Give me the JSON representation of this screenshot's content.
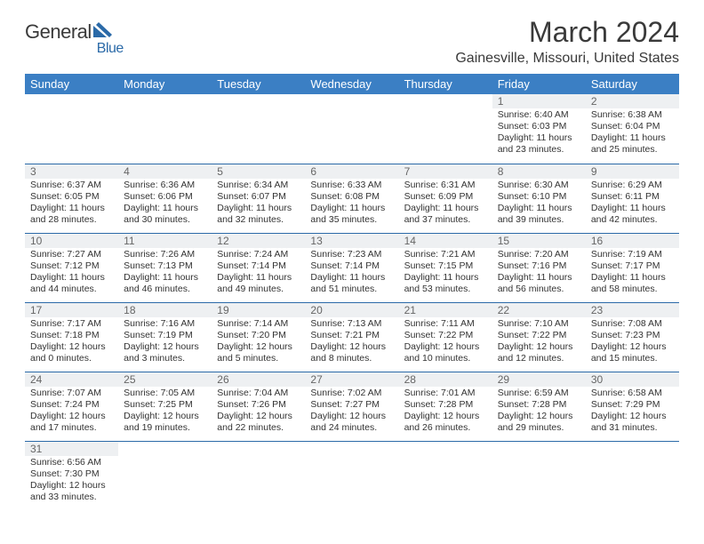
{
  "brand": {
    "word1": "General",
    "word2": "Blue"
  },
  "title": "March 2024",
  "location": "Gainesville, Missouri, United States",
  "colors": {
    "header_bg": "#3b7fc4",
    "header_text": "#ffffff",
    "row_border": "#2b6aa8",
    "daynum_bg": "#eef0f2",
    "text": "#333333",
    "brand_blue": "#2b6aa8"
  },
  "weekdays": [
    "Sunday",
    "Monday",
    "Tuesday",
    "Wednesday",
    "Thursday",
    "Friday",
    "Saturday"
  ],
  "first_weekday_index": 5,
  "days": [
    {
      "n": 1,
      "sunrise": "6:40 AM",
      "sunset": "6:03 PM",
      "dl_h": 11,
      "dl_m": 23
    },
    {
      "n": 2,
      "sunrise": "6:38 AM",
      "sunset": "6:04 PM",
      "dl_h": 11,
      "dl_m": 25
    },
    {
      "n": 3,
      "sunrise": "6:37 AM",
      "sunset": "6:05 PM",
      "dl_h": 11,
      "dl_m": 28
    },
    {
      "n": 4,
      "sunrise": "6:36 AM",
      "sunset": "6:06 PM",
      "dl_h": 11,
      "dl_m": 30
    },
    {
      "n": 5,
      "sunrise": "6:34 AM",
      "sunset": "6:07 PM",
      "dl_h": 11,
      "dl_m": 32
    },
    {
      "n": 6,
      "sunrise": "6:33 AM",
      "sunset": "6:08 PM",
      "dl_h": 11,
      "dl_m": 35
    },
    {
      "n": 7,
      "sunrise": "6:31 AM",
      "sunset": "6:09 PM",
      "dl_h": 11,
      "dl_m": 37
    },
    {
      "n": 8,
      "sunrise": "6:30 AM",
      "sunset": "6:10 PM",
      "dl_h": 11,
      "dl_m": 39
    },
    {
      "n": 9,
      "sunrise": "6:29 AM",
      "sunset": "6:11 PM",
      "dl_h": 11,
      "dl_m": 42
    },
    {
      "n": 10,
      "sunrise": "7:27 AM",
      "sunset": "7:12 PM",
      "dl_h": 11,
      "dl_m": 44
    },
    {
      "n": 11,
      "sunrise": "7:26 AM",
      "sunset": "7:13 PM",
      "dl_h": 11,
      "dl_m": 46
    },
    {
      "n": 12,
      "sunrise": "7:24 AM",
      "sunset": "7:14 PM",
      "dl_h": 11,
      "dl_m": 49
    },
    {
      "n": 13,
      "sunrise": "7:23 AM",
      "sunset": "7:14 PM",
      "dl_h": 11,
      "dl_m": 51
    },
    {
      "n": 14,
      "sunrise": "7:21 AM",
      "sunset": "7:15 PM",
      "dl_h": 11,
      "dl_m": 53
    },
    {
      "n": 15,
      "sunrise": "7:20 AM",
      "sunset": "7:16 PM",
      "dl_h": 11,
      "dl_m": 56
    },
    {
      "n": 16,
      "sunrise": "7:19 AM",
      "sunset": "7:17 PM",
      "dl_h": 11,
      "dl_m": 58
    },
    {
      "n": 17,
      "sunrise": "7:17 AM",
      "sunset": "7:18 PM",
      "dl_h": 12,
      "dl_m": 0
    },
    {
      "n": 18,
      "sunrise": "7:16 AM",
      "sunset": "7:19 PM",
      "dl_h": 12,
      "dl_m": 3
    },
    {
      "n": 19,
      "sunrise": "7:14 AM",
      "sunset": "7:20 PM",
      "dl_h": 12,
      "dl_m": 5
    },
    {
      "n": 20,
      "sunrise": "7:13 AM",
      "sunset": "7:21 PM",
      "dl_h": 12,
      "dl_m": 8
    },
    {
      "n": 21,
      "sunrise": "7:11 AM",
      "sunset": "7:22 PM",
      "dl_h": 12,
      "dl_m": 10
    },
    {
      "n": 22,
      "sunrise": "7:10 AM",
      "sunset": "7:22 PM",
      "dl_h": 12,
      "dl_m": 12
    },
    {
      "n": 23,
      "sunrise": "7:08 AM",
      "sunset": "7:23 PM",
      "dl_h": 12,
      "dl_m": 15
    },
    {
      "n": 24,
      "sunrise": "7:07 AM",
      "sunset": "7:24 PM",
      "dl_h": 12,
      "dl_m": 17
    },
    {
      "n": 25,
      "sunrise": "7:05 AM",
      "sunset": "7:25 PM",
      "dl_h": 12,
      "dl_m": 19
    },
    {
      "n": 26,
      "sunrise": "7:04 AM",
      "sunset": "7:26 PM",
      "dl_h": 12,
      "dl_m": 22
    },
    {
      "n": 27,
      "sunrise": "7:02 AM",
      "sunset": "7:27 PM",
      "dl_h": 12,
      "dl_m": 24
    },
    {
      "n": 28,
      "sunrise": "7:01 AM",
      "sunset": "7:28 PM",
      "dl_h": 12,
      "dl_m": 26
    },
    {
      "n": 29,
      "sunrise": "6:59 AM",
      "sunset": "7:28 PM",
      "dl_h": 12,
      "dl_m": 29
    },
    {
      "n": 30,
      "sunrise": "6:58 AM",
      "sunset": "7:29 PM",
      "dl_h": 12,
      "dl_m": 31
    },
    {
      "n": 31,
      "sunrise": "6:56 AM",
      "sunset": "7:30 PM",
      "dl_h": 12,
      "dl_m": 33
    }
  ],
  "labels": {
    "sunrise": "Sunrise: ",
    "sunset": "Sunset: ",
    "daylight_prefix": "Daylight: ",
    "hours_word": " hours",
    "and_word": "and ",
    "minutes_word": " minutes."
  }
}
